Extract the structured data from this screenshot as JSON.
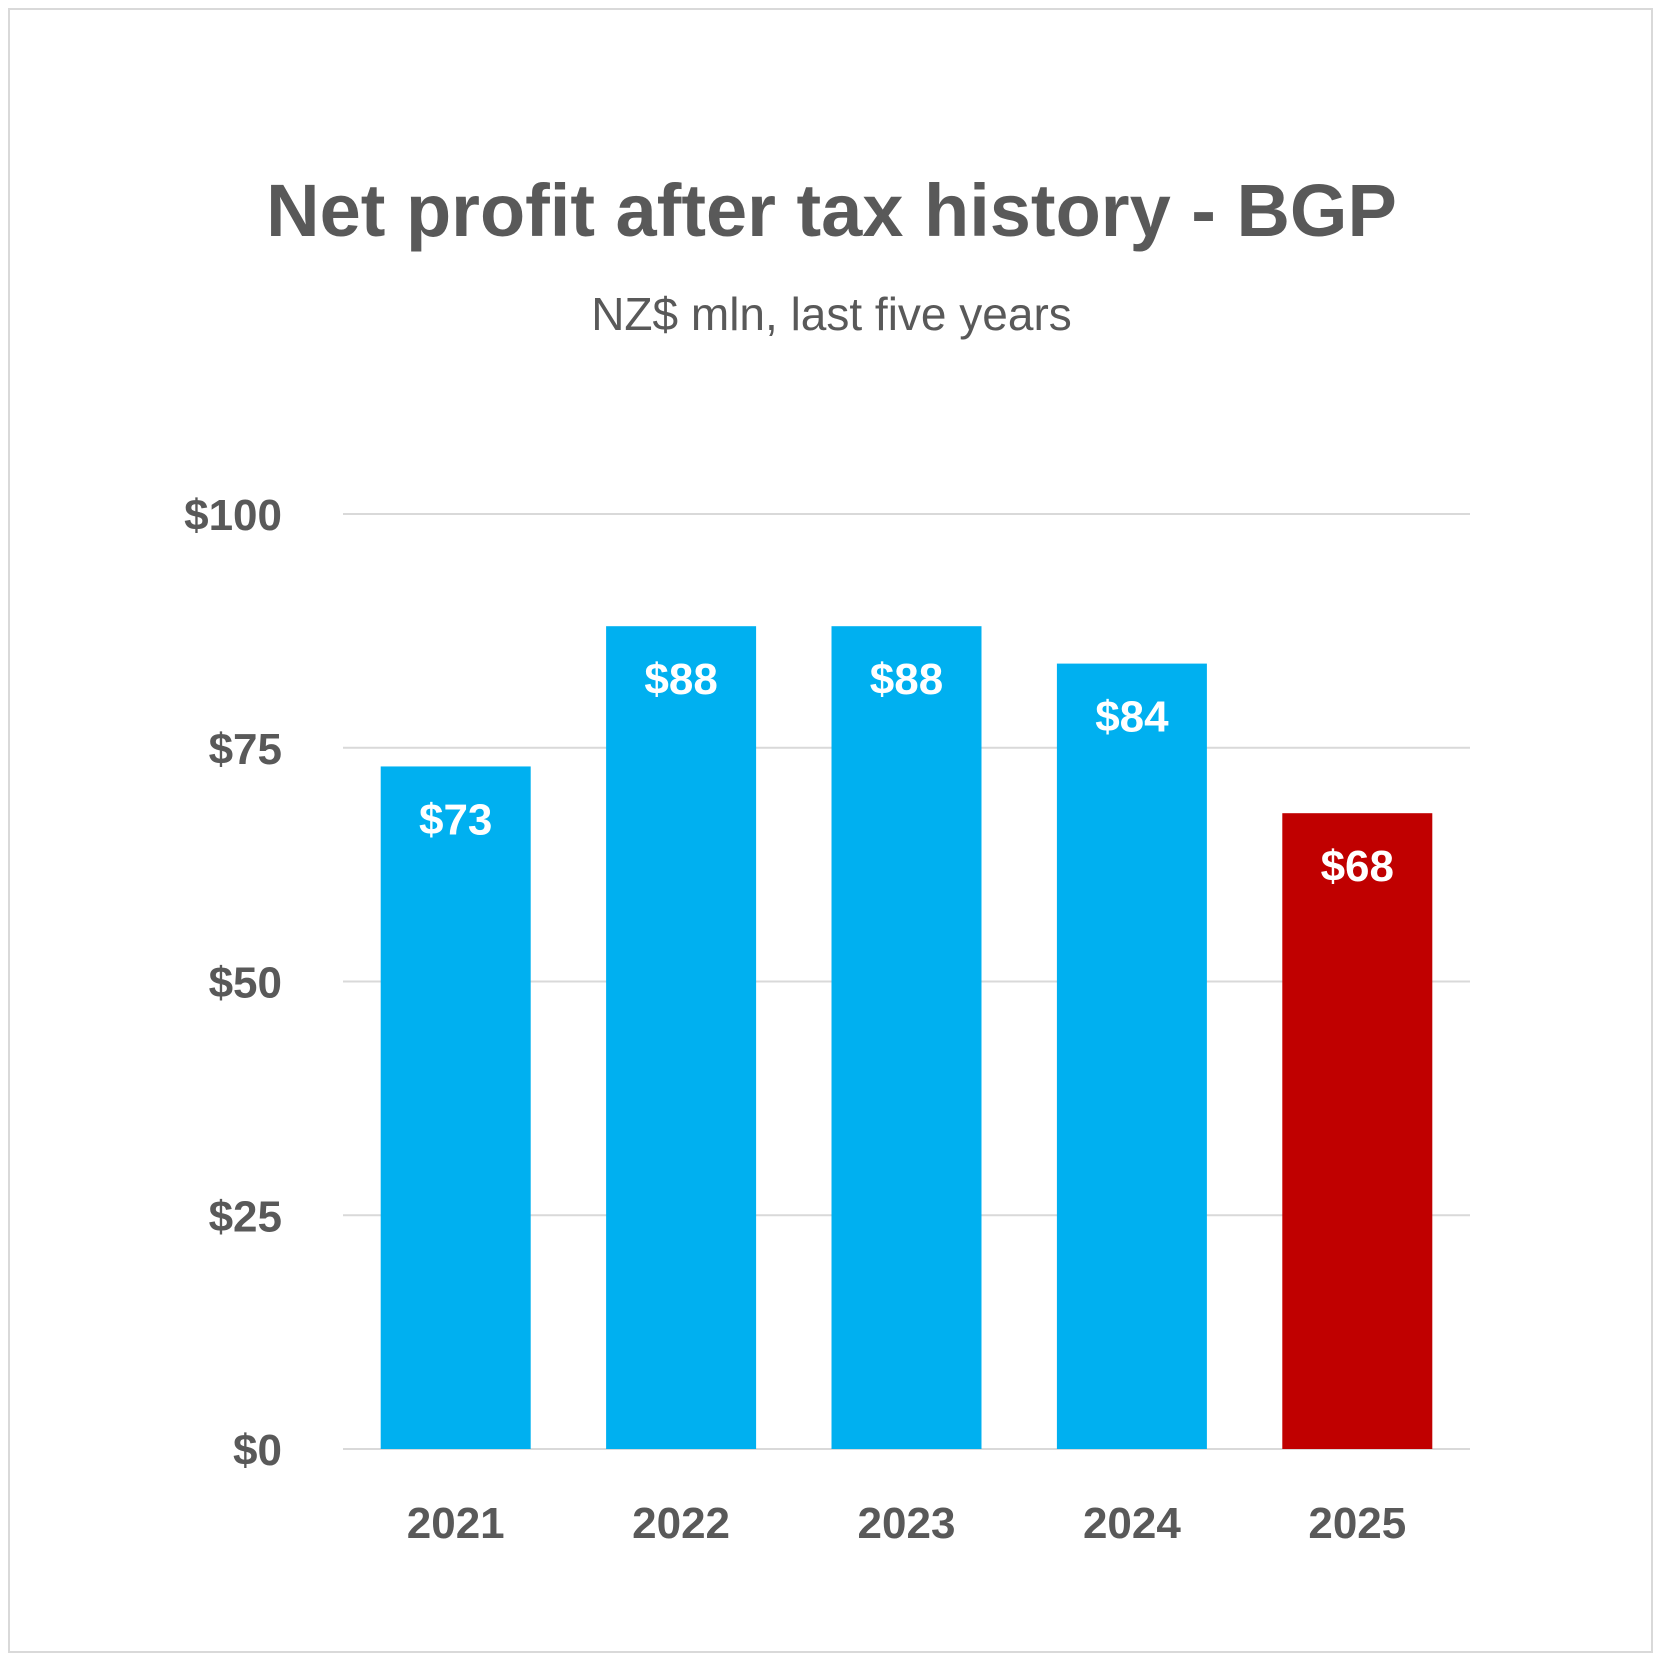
{
  "chart_data": {
    "type": "bar",
    "title": "Net profit after tax history - BGP",
    "subtitle": "NZ$ mln, last five years",
    "categories": [
      "2021",
      "2022",
      "2023",
      "2024",
      "2025"
    ],
    "values": [
      73,
      88,
      88,
      84,
      68
    ],
    "data_labels": [
      "$73",
      "$88",
      "$88",
      "$84",
      "$68"
    ],
    "bar_colors": [
      "#00b0f0",
      "#00b0f0",
      "#00b0f0",
      "#00b0f0",
      "#c00000"
    ],
    "ylim": [
      0,
      100
    ],
    "yticks": [
      0,
      25,
      50,
      75,
      100
    ],
    "ytick_labels": [
      "$0",
      "$25",
      "$50",
      "$75",
      "$100"
    ],
    "grid": true,
    "legend": "none",
    "xlabel": "",
    "ylabel": ""
  },
  "colors": {
    "text": "#595959",
    "grid": "#d9d9d9",
    "data_label": "#ffffff"
  }
}
